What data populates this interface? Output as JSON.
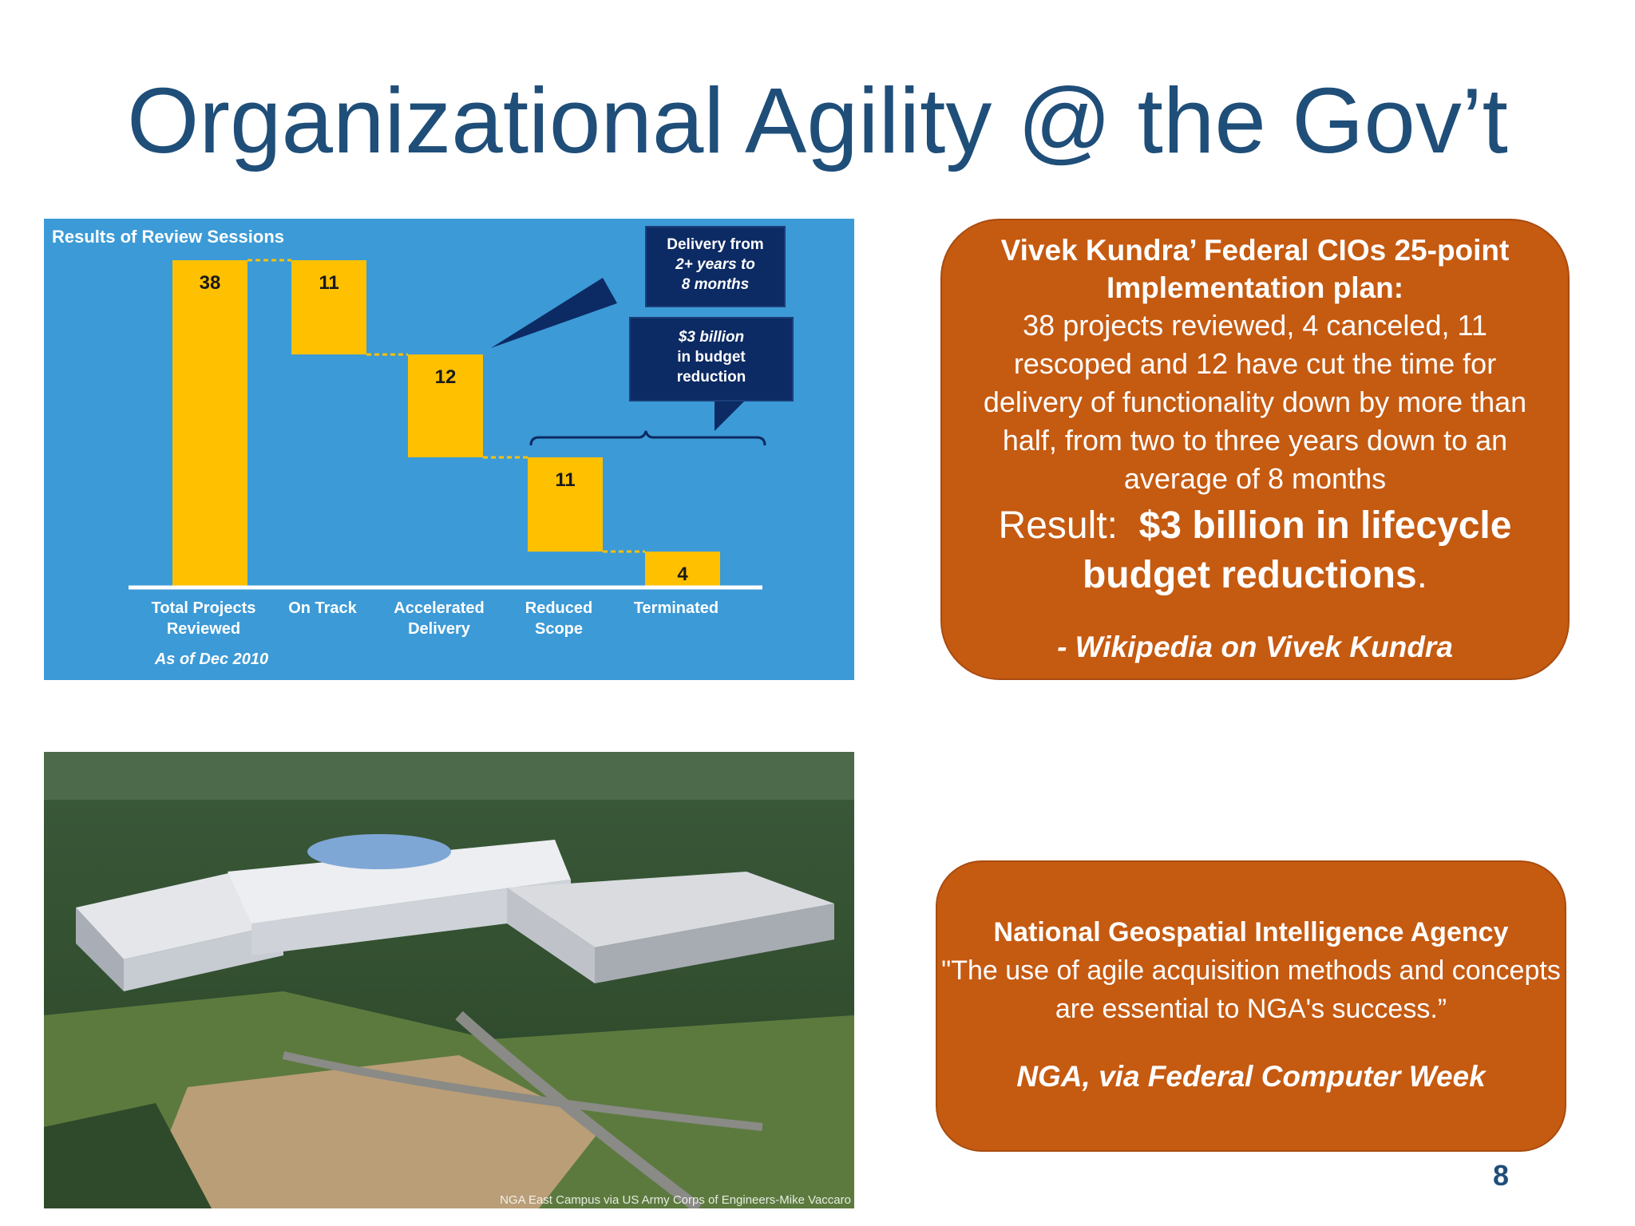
{
  "slide": {
    "title": "Organizational Agility @ the Gov’t",
    "page_number": "8"
  },
  "chart_data": {
    "type": "bar",
    "subtype": "waterfall",
    "title": "Results of Review Sessions",
    "categories": [
      "Total Projects Reviewed",
      "On Track",
      "Accelerated Delivery",
      "Reduced Scope",
      "Terminated"
    ],
    "category_lines": [
      [
        "Total Projects",
        "Reviewed"
      ],
      [
        "On Track"
      ],
      [
        "Accelerated",
        "Delivery"
      ],
      [
        "Reduced",
        "Scope"
      ],
      [
        "Terminated"
      ]
    ],
    "values": [
      38,
      11,
      12,
      11,
      4
    ],
    "footnote": "As of Dec 2010",
    "annotations": [
      {
        "lines": [
          "Delivery from",
          "2+ years to",
          "8 months"
        ]
      },
      {
        "lines": [
          "$3 billion",
          "in budget",
          "reduction"
        ]
      }
    ],
    "colors": {
      "background": "#3c9ad6",
      "bar": "#ffc000",
      "callout": "#0c2a63",
      "axis": "#ffffff"
    }
  },
  "callout_kundra": {
    "heading": "Vivek Kundra’ Federal CIOs 25-point Implementation plan:",
    "body": "38 projects reviewed, 4 canceled, 11 rescoped and 12 have cut the time for delivery of functionality down by more than half, from two to three years down to an average of 8 months",
    "result_prefix": "Result:",
    "result_bold": "$3 billion in lifecycle budget reductions",
    "result_suffix": ".",
    "source": "- Wikipedia on Vivek Kundra"
  },
  "photo": {
    "caption": "NGA East Campus via US Army Corps of Engineers-Mike Vaccaro"
  },
  "callout_nga": {
    "heading": "National Geospatial Intelligence Agency",
    "quote": "\"The use of agile acquisition methods and concepts are essential to NGA's success.”",
    "source": "NGA, via Federal Computer Week"
  },
  "colors": {
    "title": "#1f4e79",
    "callout_bg": "#c55a11"
  }
}
